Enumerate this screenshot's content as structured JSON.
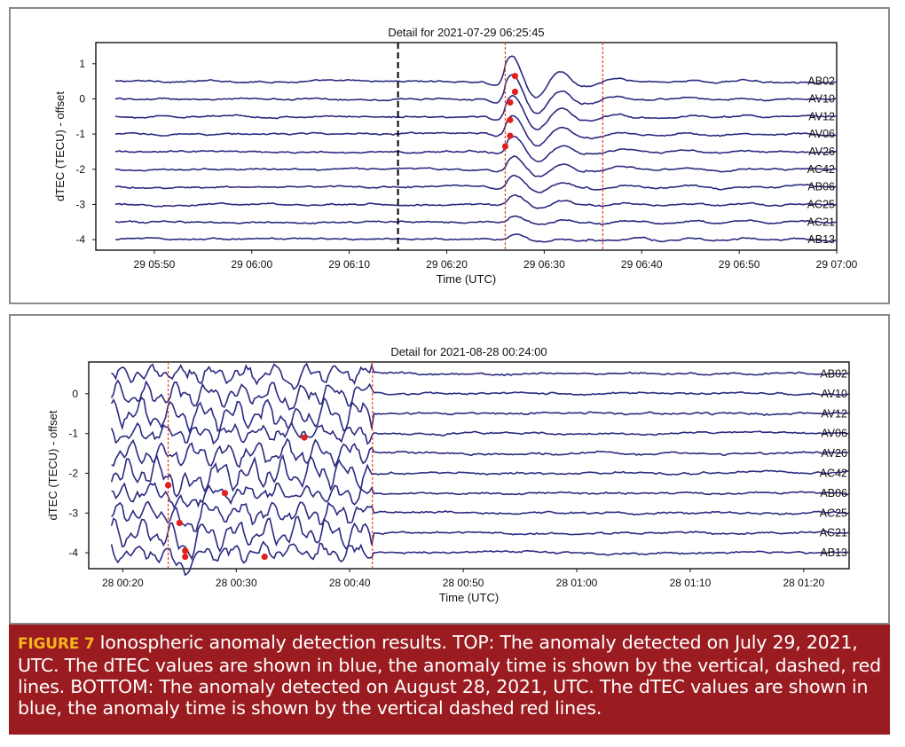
{
  "chart_data": [
    {
      "type": "line",
      "title": "Detail for 2021-07-29 06:25:45",
      "xlabel": "Time (UTC)",
      "ylabel": "dTEC (TECU) - offset",
      "x_ticks": [
        "29 05:50",
        "29 06:00",
        "29 06:10",
        "29 06:20",
        "29 06:30",
        "29 06:40",
        "29 06:50",
        "29 07:00"
      ],
      "y_ticks": [
        1,
        0,
        -1,
        -2,
        -3,
        -4
      ],
      "xlim": [
        "29 05:44",
        "29 07:00"
      ],
      "ylim": [
        -4.3,
        1.6
      ],
      "series_color": "#2b2a80",
      "anomaly_color": "#e8401c",
      "point_color": "#e02020",
      "black_dashed_line": "29 06:15",
      "red_dashed_lines": [
        "29 06:26",
        "29 06:36"
      ],
      "series": [
        {
          "name": "AB02",
          "offset": 0.5,
          "point": [
            "29 06:27",
            0.65
          ]
        },
        {
          "name": "AV10",
          "offset": 0.0,
          "point": [
            "29 06:27",
            0.2
          ]
        },
        {
          "name": "AV12",
          "offset": -0.5,
          "point": [
            "29 06:26.5",
            -0.1
          ]
        },
        {
          "name": "AV06",
          "offset": -1.0,
          "point": [
            "29 06:26.5",
            -0.6
          ]
        },
        {
          "name": "AV26",
          "offset": -1.5,
          "point": [
            "29 06:26.5",
            -1.05
          ]
        },
        {
          "name": "AC42",
          "offset": -2.0,
          "point": [
            "29 06:26",
            -1.35
          ]
        },
        {
          "name": "AB06",
          "offset": -2.5
        },
        {
          "name": "AC25",
          "offset": -3.0
        },
        {
          "name": "AC21",
          "offset": -3.5
        },
        {
          "name": "AB13",
          "offset": -4.0
        }
      ]
    },
    {
      "type": "line",
      "title": "Detail for 2021-08-28 00:24:00",
      "xlabel": "Time (UTC)",
      "ylabel": "dTEC (TECU) - offset",
      "x_ticks": [
        "28 00:20",
        "28 00:30",
        "28 00:40",
        "28 00:50",
        "28 01:00",
        "28 01:10",
        "28 01:20"
      ],
      "y_ticks": [
        0,
        -1,
        -2,
        -3,
        -4
      ],
      "xlim": [
        "28 00:17",
        "28 01:24"
      ],
      "ylim": [
        -4.4,
        0.8
      ],
      "series_color": "#2b2a80",
      "anomaly_color": "#e8401c",
      "point_color": "#e02020",
      "red_dashed_lines": [
        "28 00:24",
        "28 00:42"
      ],
      "series": [
        {
          "name": "AB02",
          "offset": 0.5
        },
        {
          "name": "AV10",
          "offset": 0.0
        },
        {
          "name": "AV12",
          "offset": -0.5
        },
        {
          "name": "AV06",
          "offset": -1.0,
          "point": [
            "28 00:36",
            -1.1
          ]
        },
        {
          "name": "AV26",
          "offset": -1.5
        },
        {
          "name": "AC42",
          "offset": -2.0,
          "point": [
            "28 00:24",
            -2.3
          ]
        },
        {
          "name": "AB06",
          "offset": -2.5,
          "point": [
            "28 00:29",
            -2.5
          ]
        },
        {
          "name": "AC25",
          "offset": -3.0,
          "point": [
            "28 00:25",
            -3.25
          ]
        },
        {
          "name": "AC21",
          "offset": -3.5,
          "point": [
            "28 00:25.5",
            -3.95
          ]
        },
        {
          "name": "AB13",
          "offset": -4.0,
          "point": [
            "28 00:32.5",
            -4.1
          ]
        }
      ],
      "extra_points": [
        [
          "28 00:25.5",
          -4.1
        ]
      ]
    }
  ],
  "caption": {
    "figure_label": "FIGURE 7",
    "text": "Ionospheric anomaly detection results. TOP: The anomaly detected on July 29, 2021, UTC. The dTEC values are shown in blue, the anomaly time is shown by the vertical, dashed, red lines. BOTTOM: The anomaly detected on August 28, 2021, UTC. The dTEC values are shown in blue, the anomaly time is shown by the vertical dashed red lines."
  }
}
